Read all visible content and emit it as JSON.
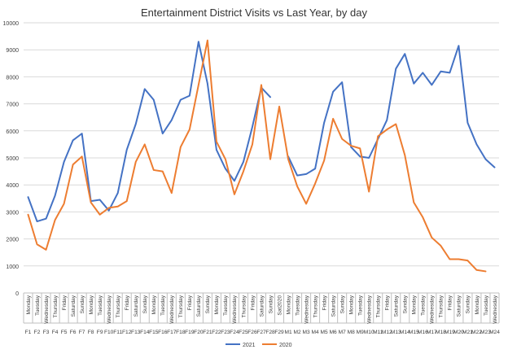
{
  "chart_data": {
    "type": "line",
    "title": "Entertainment District Visits vs Last Year, by day",
    "xlabel": "",
    "ylabel": "",
    "ylim": [
      0,
      10000
    ],
    "yticks": [
      0,
      1000,
      2000,
      3000,
      4000,
      5000,
      6000,
      7000,
      8000,
      9000,
      10000
    ],
    "grid": true,
    "legend": "bottom-center",
    "categories": [
      {
        "day": "Monday",
        "date": "F1"
      },
      {
        "day": "Tuesday",
        "date": "F2"
      },
      {
        "day": "Wednesday",
        "date": "F3"
      },
      {
        "day": "Thursday",
        "date": "F4"
      },
      {
        "day": "Friday",
        "date": "F5"
      },
      {
        "day": "Saturday",
        "date": "F6"
      },
      {
        "day": "Sunday",
        "date": "F7"
      },
      {
        "day": "Monday",
        "date": "F8"
      },
      {
        "day": "Tuesday",
        "date": "F9"
      },
      {
        "day": "Wednesday",
        "date": "F10"
      },
      {
        "day": "Thursday",
        "date": "F11"
      },
      {
        "day": "Friday",
        "date": "F12"
      },
      {
        "day": "Saturday",
        "date": "F13"
      },
      {
        "day": "Sunday",
        "date": "F14"
      },
      {
        "day": "Monday",
        "date": "F15"
      },
      {
        "day": "Tuesday",
        "date": "F16"
      },
      {
        "day": "Wednesday",
        "date": "F17"
      },
      {
        "day": "Thursday",
        "date": "F18"
      },
      {
        "day": "Friday",
        "date": "F19"
      },
      {
        "day": "Saturday",
        "date": "F20"
      },
      {
        "day": "Sunday",
        "date": "F21"
      },
      {
        "day": "Monday",
        "date": "F22"
      },
      {
        "day": "Tuesday",
        "date": "F23"
      },
      {
        "day": "Wednesday",
        "date": "F24"
      },
      {
        "day": "Thursday",
        "date": "F25"
      },
      {
        "day": "Friday",
        "date": "F26"
      },
      {
        "day": "Saturday",
        "date": "F27"
      },
      {
        "day": "Sunday",
        "date": "F28"
      },
      {
        "day": "Sat2020",
        "date": "F29"
      },
      {
        "day": "Monday",
        "date": "M1"
      },
      {
        "day": "Tuesday",
        "date": "M2"
      },
      {
        "day": "Wednesday",
        "date": "M3"
      },
      {
        "day": "Thursday",
        "date": "M4"
      },
      {
        "day": "Friday",
        "date": "M5"
      },
      {
        "day": "Saturday",
        "date": "M6"
      },
      {
        "day": "Sunday",
        "date": "M7"
      },
      {
        "day": "Monday",
        "date": "M8"
      },
      {
        "day": "Tuesday",
        "date": "M9"
      },
      {
        "day": "Wednesday",
        "date": "M10"
      },
      {
        "day": "Thursday",
        "date": "M11"
      },
      {
        "day": "Friday",
        "date": "M12"
      },
      {
        "day": "Saturday",
        "date": "M13"
      },
      {
        "day": "Sunday",
        "date": "M14"
      },
      {
        "day": "Monday",
        "date": "M15"
      },
      {
        "day": "Tuesday",
        "date": "M16"
      },
      {
        "day": "Wednesday",
        "date": "M17"
      },
      {
        "day": "Thursday",
        "date": "M18"
      },
      {
        "day": "Friday",
        "date": "M19"
      },
      {
        "day": "Saturday",
        "date": "M20"
      },
      {
        "day": "Sunday",
        "date": "M21"
      },
      {
        "day": "Monday",
        "date": "M22"
      },
      {
        "day": "Tuesday",
        "date": "M23"
      },
      {
        "day": "Wednesday",
        "date": "M24"
      }
    ],
    "series": [
      {
        "name": "2021",
        "color": "#4472C4",
        "values": [
          3550,
          2650,
          2750,
          3600,
          4850,
          5650,
          5900,
          3400,
          3450,
          3050,
          3700,
          5300,
          6250,
          7550,
          7150,
          5900,
          6400,
          7150,
          7300,
          9300,
          7750,
          5300,
          4600,
          4150,
          4850,
          6150,
          7600,
          7250,
          null,
          5050,
          4350,
          4400,
          4600,
          6300,
          7450,
          7800,
          5400,
          5050,
          5000,
          5700,
          6400,
          8300,
          8850,
          7750,
          8150,
          7700,
          8200,
          8150,
          9150,
          6300,
          5500,
          4950,
          4650
        ]
      },
      {
        "name": "2020",
        "color": "#ED7D31",
        "values": [
          2900,
          1800,
          1600,
          2700,
          3300,
          4750,
          5050,
          3350,
          2900,
          3150,
          3200,
          3400,
          4850,
          5500,
          4550,
          4500,
          3700,
          5400,
          6050,
          7700,
          9350,
          5600,
          4950,
          3650,
          4500,
          5500,
          7700,
          4950,
          6900,
          4950,
          3950,
          3300,
          4050,
          4900,
          6450,
          5700,
          5450,
          5350,
          3750,
          5800,
          6050,
          6250,
          5100,
          3350,
          2800,
          2050,
          1750,
          1250,
          1250,
          1200,
          850,
          800,
          null
        ]
      }
    ]
  }
}
